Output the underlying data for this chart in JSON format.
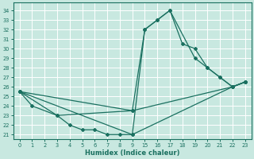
{
  "xlabel": "Humidex (Indice chaleur)",
  "background_color": "#c8e8e0",
  "line_color": "#1a7060",
  "grid_color": "#ffffff",
  "xtick_values": [
    0,
    1,
    2,
    3,
    4,
    5,
    6,
    7,
    8,
    9,
    15,
    16,
    17,
    18,
    19,
    20,
    21,
    22,
    23
  ],
  "ytick_values": [
    21,
    22,
    23,
    24,
    25,
    26,
    27,
    28,
    29,
    30,
    31,
    32,
    33,
    34
  ],
  "ylim": [
    20.5,
    34.8
  ],
  "lines": [
    {
      "x": [
        0,
        1,
        3,
        4,
        5,
        6,
        7,
        8,
        9,
        15,
        16,
        17,
        18,
        19,
        20,
        21,
        22,
        23
      ],
      "y": [
        25.5,
        24,
        23,
        22,
        21.5,
        21.5,
        21,
        21,
        21,
        32,
        33,
        34,
        30.5,
        30,
        28,
        27,
        26,
        26.5
      ]
    },
    {
      "x": [
        0,
        3,
        9,
        15,
        16,
        17,
        19,
        20,
        21,
        22,
        23
      ],
      "y": [
        25.5,
        23,
        23.5,
        32,
        33,
        34,
        29,
        28,
        27,
        26,
        26.5
      ]
    },
    {
      "x": [
        0,
        9,
        22,
        23
      ],
      "y": [
        25.5,
        23.5,
        26,
        26.5
      ]
    },
    {
      "x": [
        0,
        9,
        22,
        23
      ],
      "y": [
        25.5,
        21,
        26,
        26.5
      ]
    }
  ]
}
